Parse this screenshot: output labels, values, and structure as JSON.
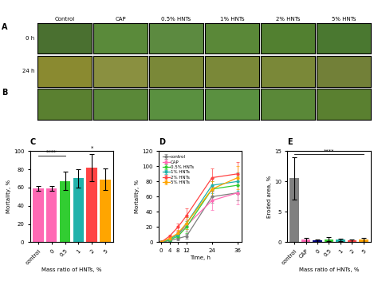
{
  "chart_data": [
    {
      "type": "photos",
      "title": "A",
      "categories": [
        "Control",
        "CAP",
        "0.5% HNTs",
        "1% HNTs",
        "2% HNTs",
        "5% HNTs"
      ],
      "rows": [
        "0 h",
        "24 h"
      ],
      "colors": [
        [
          "#4a7030",
          "#5a8a3a",
          "#5c8a40",
          "#5a8838",
          "#528030",
          "#4a7830"
        ],
        [
          "#8a8a30",
          "#8a9040",
          "#7a8838",
          "#7a8838",
          "#7a8838",
          "#728038"
        ]
      ],
      "tick_labels": false
    },
    {
      "type": "photos",
      "title": "B",
      "colors": [
        [
          "#5a8030",
          "#5a8838",
          "#5a9040",
          "#5a9040",
          "#5a8838",
          "#5a8030"
        ]
      ],
      "tick_labels": false
    },
    {
      "type": "bar",
      "title": "C",
      "categories": [
        "control",
        "0",
        "0.5",
        "1",
        "2",
        "5"
      ],
      "values": [
        59,
        59,
        67,
        70,
        82,
        69
      ],
      "errors": [
        3,
        3,
        10,
        10,
        15,
        12
      ],
      "colors": [
        "#ff69b4",
        "#ff69b4",
        "#32cd32",
        "#20b2aa",
        "#ff4444",
        "#ffa500"
      ],
      "x_label": "Mass ratio of HNTs, %",
      "y_label": "Mortality, %",
      "ylim": [
        0,
        100
      ],
      "yticks": [
        0,
        20,
        40,
        60,
        80,
        100
      ],
      "annotations": [
        {
          "text": "****",
          "from": "control",
          "to": "0.5",
          "y": 95
        },
        {
          "text": "*",
          "from": "1",
          "to": "5",
          "y": 100
        }
      ]
    },
    {
      "type": "line",
      "title": "D",
      "x": [
        0,
        4,
        8,
        12,
        24,
        36
      ],
      "series": [
        {
          "name": "control",
          "color": "#808080",
          "marker": "o",
          "values": [
            0,
            2,
            5,
            8,
            60,
            65
          ],
          "errors": [
            0,
            1,
            2,
            3,
            8,
            10
          ]
        },
        {
          "name": "CAP",
          "color": "#ff69b4",
          "marker": "o",
          "values": [
            0,
            5,
            10,
            22,
            55,
            65
          ],
          "errors": [
            0,
            2,
            4,
            8,
            12,
            15
          ]
        },
        {
          "name": "0.5% HNTs",
          "color": "#32cd32",
          "marker": "o",
          "values": [
            0,
            3,
            8,
            20,
            70,
            75
          ],
          "errors": [
            0,
            1,
            3,
            8,
            10,
            12
          ]
        },
        {
          "name": "1% HNTs",
          "color": "#20b2aa",
          "marker": "o",
          "values": [
            0,
            4,
            10,
            25,
            75,
            80
          ],
          "errors": [
            0,
            1,
            3,
            8,
            10,
            12
          ]
        },
        {
          "name": "2% HNTs",
          "color": "#ff4444",
          "marker": "o",
          "values": [
            0,
            8,
            20,
            35,
            85,
            90
          ],
          "errors": [
            0,
            2,
            5,
            10,
            12,
            15
          ]
        },
        {
          "name": "5% HNTs",
          "color": "#ffa500",
          "marker": "o",
          "values": [
            0,
            5,
            12,
            25,
            70,
            85
          ],
          "errors": [
            0,
            2,
            4,
            8,
            10,
            15
          ]
        }
      ],
      "x_label": "Time, h",
      "y_label": "Mortality, %",
      "xlim": [
        -1,
        38
      ],
      "xticks": [
        0,
        4,
        8,
        12,
        24,
        36
      ],
      "ylim": [
        0,
        120
      ],
      "yticks": [
        0,
        20,
        40,
        60,
        80,
        100,
        120
      ],
      "legend": "upper left"
    },
    {
      "type": "bar",
      "title": "E",
      "categories": [
        "control",
        "CAP",
        "0",
        "0.5",
        "1",
        "2",
        "5"
      ],
      "values": [
        10.5,
        0.4,
        0.3,
        0.5,
        0.4,
        0.3,
        0.4
      ],
      "errors": [
        3.5,
        0.3,
        0.2,
        0.3,
        0.2,
        0.2,
        0.3
      ],
      "colors": [
        "#808080",
        "#ff69b4",
        "#000080",
        "#32cd32",
        "#20b2aa",
        "#ff4444",
        "#ffa500"
      ],
      "x_label": "Mass ratio of HNTs, %",
      "y_label": "Eroded area, %",
      "ylim": [
        0,
        15
      ],
      "yticks": [
        0,
        5,
        10,
        15
      ],
      "annotations": [
        {
          "text": "****",
          "from": "control",
          "to": "5",
          "y": 14.5
        }
      ]
    }
  ]
}
